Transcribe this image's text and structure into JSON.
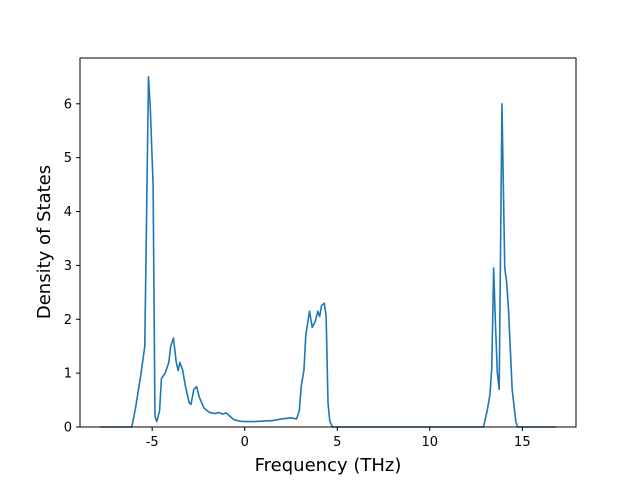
{
  "chart_data": {
    "type": "line",
    "title": "",
    "xlabel": "Frequency (THz)",
    "ylabel": "Density of States",
    "xlim": [
      -8.9,
      17.9
    ],
    "ylim": [
      0,
      6.85
    ],
    "x_ticks": [
      -5,
      0,
      5,
      10,
      15
    ],
    "y_ticks": [
      0,
      1,
      2,
      3,
      4,
      5,
      6
    ],
    "grid": false,
    "line_color": "#1f77b4",
    "series": [
      {
        "x": [
          -7.8,
          -6.5,
          -6.1,
          -5.9,
          -5.6,
          -5.4,
          -5.2,
          -5.1,
          -4.95,
          -4.85,
          -4.75,
          -4.6,
          -4.5,
          -4.3,
          -4.1,
          -4.0,
          -3.85,
          -3.7,
          -3.6,
          -3.5,
          -3.35,
          -3.2,
          -3.0,
          -2.9,
          -2.75,
          -2.6,
          -2.45,
          -2.2,
          -1.9,
          -1.6,
          -1.4,
          -1.2,
          -1.0,
          -0.8,
          -0.6,
          -0.3,
          0.0,
          0.5,
          1.0,
          1.5,
          2.0,
          2.5,
          2.8,
          2.95,
          3.05,
          3.2,
          3.3,
          3.5,
          3.65,
          3.8,
          3.95,
          4.05,
          4.15,
          4.3,
          4.4,
          4.5,
          4.6,
          4.75,
          5.2,
          6.0,
          8.0,
          10.0,
          12.0,
          12.9,
          13.1,
          13.25,
          13.35,
          13.45,
          13.55,
          13.65,
          13.75,
          13.9,
          14.05,
          14.15,
          14.25,
          14.45,
          14.65,
          14.75,
          14.85,
          15.1,
          16.8
        ],
        "y": [
          0,
          0,
          0,
          0.35,
          1.0,
          1.5,
          6.5,
          5.9,
          4.5,
          0.2,
          0.1,
          0.3,
          0.9,
          1.0,
          1.2,
          1.5,
          1.65,
          1.2,
          1.05,
          1.2,
          1.05,
          0.75,
          0.45,
          0.42,
          0.7,
          0.75,
          0.55,
          0.35,
          0.27,
          0.25,
          0.27,
          0.24,
          0.26,
          0.2,
          0.14,
          0.11,
          0.1,
          0.1,
          0.11,
          0.12,
          0.15,
          0.17,
          0.15,
          0.3,
          0.75,
          1.05,
          1.7,
          2.15,
          1.85,
          1.95,
          2.15,
          2.05,
          2.25,
          2.3,
          2.05,
          0.45,
          0.1,
          0,
          0,
          0,
          0,
          0,
          0,
          0,
          0.3,
          0.6,
          1.1,
          2.95,
          1.9,
          1.0,
          0.7,
          6.0,
          2.95,
          2.7,
          2.2,
          0.7,
          0.1,
          0,
          0,
          0,
          0
        ]
      }
    ]
  }
}
